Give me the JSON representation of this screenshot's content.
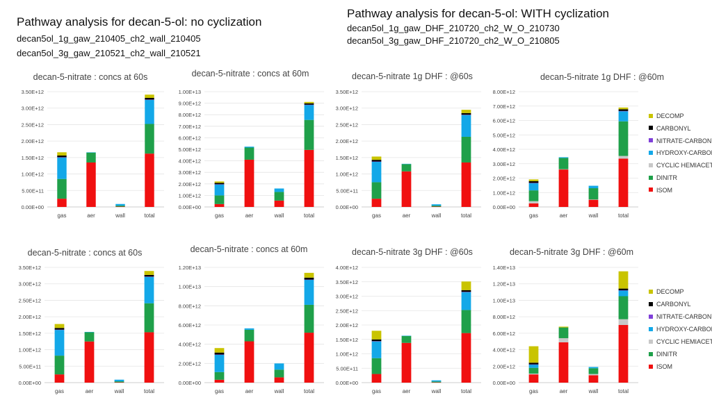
{
  "header_left": {
    "title": "Pathway analysis for decan-5-ol: no cyclization",
    "line1": "decan5ol_1g_gaw_210405_ch2_wall_210405",
    "line2": "decan5ol_3g_gaw_210521_ch2_wall_210521"
  },
  "header_right": {
    "title": "Pathway analysis for decan-5-ol: WITH cyclization",
    "line1": "decan5ol_1g_gaw_DHF_210720_ch2_W_O_210730",
    "line2": "decan5ol_3g_gaw_DHF_210720_ch2_W_O_210805"
  },
  "legend": {
    "items": [
      {
        "label": "DECOMP",
        "color": "#c9c400"
      },
      {
        "label": "CARBONYL",
        "color": "#000000"
      },
      {
        "label": "NITRATE-CARBONYL",
        "color": "#7f3fd9"
      },
      {
        "label": "HYDROXY-CARBONYL",
        "color": "#13a8e8"
      },
      {
        "label": "CYCLIC HEMIACETALS",
        "color": "#c8c8c8"
      },
      {
        "label": "DINITR",
        "color": "#1fa04a"
      },
      {
        "label": "ISOM",
        "color": "#f01010"
      }
    ]
  },
  "chart_data": [
    {
      "type": "bar",
      "stacked": true,
      "title": "decan-5-nitrate : concs at 60s",
      "categories": [
        "gas",
        "aer",
        "wall",
        "total"
      ],
      "ylim": [
        0,
        3500000000000.0
      ],
      "yticks": [
        "0.00E+00",
        "5.00E+11",
        "1.00E+12",
        "1.50E+12",
        "2.00E+12",
        "2.50E+12",
        "3.00E+12",
        "3.50E+12"
      ],
      "series": [
        {
          "name": "ISOM",
          "values": [
            250000000000.0,
            1350000000000.0,
            10000000000.0,
            1620000000000.0
          ]
        },
        {
          "name": "CYCLIC HEMIACETALS",
          "values": [
            0,
            0,
            0,
            0
          ]
        },
        {
          "name": "DINITR",
          "values": [
            600000000000.0,
            300000000000.0,
            30000000000.0,
            900000000000.0
          ]
        },
        {
          "name": "HYDROXY-CARBONYL",
          "values": [
            650000000000.0,
            10000000000.0,
            50000000000.0,
            730000000000.0
          ]
        },
        {
          "name": "NITRATE-CARBONYL",
          "values": [
            10000000000.0,
            0,
            0,
            10000000000.0
          ]
        },
        {
          "name": "CARBONYL",
          "values": [
            50000000000.0,
            0,
            0,
            50000000000.0
          ]
        },
        {
          "name": "DECOMP",
          "values": [
            100000000000.0,
            0,
            0,
            100000000000.0
          ]
        }
      ]
    },
    {
      "type": "bar",
      "stacked": true,
      "title": "decan-5-nitrate : concs at 60m",
      "categories": [
        "gas",
        "aer",
        "wall",
        "total"
      ],
      "ylim": [
        0,
        10000000000000.0
      ],
      "yticks": [
        "0.00E+00",
        "1.00E+12",
        "2.00E+12",
        "3.00E+12",
        "4.00E+12",
        "5.00E+12",
        "6.00E+12",
        "7.00E+12",
        "8.00E+12",
        "9.00E+12",
        "1.00E+13"
      ],
      "series": [
        {
          "name": "ISOM",
          "values": [
            250000000000.0,
            4100000000000.0,
            550000000000.0,
            4950000000000.0
          ]
        },
        {
          "name": "CYCLIC HEMIACETALS",
          "values": [
            0,
            0,
            0,
            0
          ]
        },
        {
          "name": "DINITR",
          "values": [
            750000000000.0,
            1050000000000.0,
            750000000000.0,
            2600000000000.0
          ]
        },
        {
          "name": "HYDROXY-CARBONYL",
          "values": [
            950000000000.0,
            80000000000.0,
            300000000000.0,
            1300000000000.0
          ]
        },
        {
          "name": "NITRATE-CARBONYL",
          "values": [
            20000000000.0,
            0,
            0,
            20000000000.0
          ]
        },
        {
          "name": "CARBONYL",
          "values": [
            120000000000.0,
            0,
            0,
            120000000000.0
          ]
        },
        {
          "name": "DECOMP",
          "values": [
            120000000000.0,
            0,
            0,
            120000000000.0
          ]
        }
      ]
    },
    {
      "type": "bar",
      "stacked": true,
      "title": "decan-5-nitrate 1g DHF : @60s",
      "categories": [
        "gas",
        "aer",
        "wall",
        "total"
      ],
      "ylim": [
        0,
        3500000000000.0
      ],
      "yticks": [
        "0.00E+00",
        "5.00E+11",
        "1.00E+12",
        "1.50E+12",
        "2.00E+12",
        "2.50E+12",
        "3.00E+12",
        "3.50E+12"
      ],
      "series": [
        {
          "name": "ISOM",
          "values": [
            250000000000.0,
            1080000000000.0,
            10000000000.0,
            1350000000000.0
          ]
        },
        {
          "name": "CYCLIC HEMIACETALS",
          "values": [
            0,
            0,
            0,
            0
          ]
        },
        {
          "name": "DINITR",
          "values": [
            500000000000.0,
            220000000000.0,
            30000000000.0,
            780000000000.0
          ]
        },
        {
          "name": "HYDROXY-CARBONYL",
          "values": [
            620000000000.0,
            10000000000.0,
            40000000000.0,
            660000000000.0
          ]
        },
        {
          "name": "NITRATE-CARBONYL",
          "values": [
            10000000000.0,
            0,
            0,
            10000000000.0
          ]
        },
        {
          "name": "CARBONYL",
          "values": [
            50000000000.0,
            0,
            0,
            50000000000.0
          ]
        },
        {
          "name": "DECOMP",
          "values": [
            100000000000.0,
            0,
            0,
            100000000000.0
          ]
        }
      ]
    },
    {
      "type": "bar",
      "stacked": true,
      "title": "decan-5-nitrate 1g DHF : @60m",
      "categories": [
        "gas",
        "aer",
        "wall",
        "total"
      ],
      "ylim": [
        0,
        8000000000000.0
      ],
      "yticks": [
        "0.00E+00",
        "1.00E+12",
        "2.00E+12",
        "3.00E+12",
        "4.00E+12",
        "5.00E+12",
        "6.00E+12",
        "7.00E+12",
        "8.00E+12"
      ],
      "series": [
        {
          "name": "ISOM",
          "values": [
            250000000000.0,
            2600000000000.0,
            500000000000.0,
            3350000000000.0
          ]
        },
        {
          "name": "CYCLIC HEMIACETALS",
          "values": [
            150000000000.0,
            20000000000.0,
            20000000000.0,
            190000000000.0
          ]
        },
        {
          "name": "DINITR",
          "values": [
            750000000000.0,
            780000000000.0,
            780000000000.0,
            2400000000000.0
          ]
        },
        {
          "name": "HYDROXY-CARBONYL",
          "values": [
            500000000000.0,
            50000000000.0,
            170000000000.0,
            700000000000.0
          ]
        },
        {
          "name": "NITRATE-CARBONYL",
          "values": [
            20000000000.0,
            0,
            0,
            20000000000.0
          ]
        },
        {
          "name": "CARBONYL",
          "values": [
            120000000000.0,
            0,
            0,
            120000000000.0
          ]
        },
        {
          "name": "DECOMP",
          "values": [
            120000000000.0,
            0,
            0,
            120000000000.0
          ]
        }
      ]
    },
    {
      "type": "bar",
      "stacked": true,
      "title": "decan-5-nitrate : concs at 60s",
      "categories": [
        "gas",
        "aer",
        "wall",
        "total"
      ],
      "ylim": [
        0,
        3500000000000.0
      ],
      "yticks": [
        "0.00E+00",
        "5.00E+11",
        "1.00E+12",
        "1.50E+12",
        "2.00E+12",
        "2.50E+12",
        "3.00E+12",
        "3.50E+12"
      ],
      "series": [
        {
          "name": "ISOM",
          "values": [
            250000000000.0,
            1250000000000.0,
            10000000000.0,
            1530000000000.0
          ]
        },
        {
          "name": "CYCLIC HEMIACETALS",
          "values": [
            0,
            0,
            0,
            0
          ]
        },
        {
          "name": "DINITR",
          "values": [
            570000000000.0,
            280000000000.0,
            30000000000.0,
            880000000000.0
          ]
        },
        {
          "name": "HYDROXY-CARBONYL",
          "values": [
            780000000000.0,
            10000000000.0,
            50000000000.0,
            800000000000.0
          ]
        },
        {
          "name": "NITRATE-CARBONYL",
          "values": [
            10000000000.0,
            0,
            0,
            10000000000.0
          ]
        },
        {
          "name": "CARBONYL",
          "values": [
            50000000000.0,
            0,
            0,
            50000000000.0
          ]
        },
        {
          "name": "DECOMP",
          "values": [
            120000000000.0,
            0,
            0,
            120000000000.0
          ]
        }
      ]
    },
    {
      "type": "bar",
      "stacked": true,
      "title": "decan-5-nitrate : concs at 60m",
      "categories": [
        "gas",
        "aer",
        "wall",
        "total"
      ],
      "ylim": [
        0,
        12000000000000.0
      ],
      "yticks": [
        "0.00E+00",
        "2.00E+12",
        "4.00E+12",
        "6.00E+12",
        "8.00E+12",
        "1.00E+13",
        "1.20E+13"
      ],
      "series": [
        {
          "name": "ISOM",
          "values": [
            300000000000.0,
            4300000000000.0,
            550000000000.0,
            5200000000000.0
          ]
        },
        {
          "name": "CYCLIC HEMIACETALS",
          "values": [
            0,
            0,
            0,
            0
          ]
        },
        {
          "name": "DINITR",
          "values": [
            800000000000.0,
            1200000000000.0,
            800000000000.0,
            2900000000000.0
          ]
        },
        {
          "name": "HYDROXY-CARBONYL",
          "values": [
            1800000000000.0,
            150000000000.0,
            650000000000.0,
            2600000000000.0
          ]
        },
        {
          "name": "NITRATE-CARBONYL",
          "values": [
            30000000000.0,
            0,
            0,
            30000000000.0
          ]
        },
        {
          "name": "CARBONYL",
          "values": [
            200000000000.0,
            0,
            0,
            200000000000.0
          ]
        },
        {
          "name": "DECOMP",
          "values": [
            470000000000.0,
            0,
            0,
            500000000000.0
          ]
        }
      ]
    },
    {
      "type": "bar",
      "stacked": true,
      "title": "decan-5-nitrate 3g DHF : @60s",
      "categories": [
        "gas",
        "aer",
        "wall",
        "total"
      ],
      "ylim": [
        0,
        4000000000000.0
      ],
      "yticks": [
        "0.00E+00",
        "5.00E+11",
        "1.00E+12",
        "1.50E+12",
        "2.00E+12",
        "2.50E+12",
        "3.00E+12",
        "3.50E+12",
        "4.00E+12"
      ],
      "series": [
        {
          "name": "ISOM",
          "values": [
            300000000000.0,
            1380000000000.0,
            10000000000.0,
            1720000000000.0
          ]
        },
        {
          "name": "CYCLIC HEMIACETALS",
          "values": [
            0,
            0,
            0,
            0
          ]
        },
        {
          "name": "DINITR",
          "values": [
            550000000000.0,
            240000000000.0,
            30000000000.0,
            800000000000.0
          ]
        },
        {
          "name": "HYDROXY-CARBONYL",
          "values": [
            580000000000.0,
            10000000000.0,
            40000000000.0,
            620000000000.0
          ]
        },
        {
          "name": "NITRATE-CARBONYL",
          "values": [
            10000000000.0,
            0,
            0,
            10000000000.0
          ]
        },
        {
          "name": "CARBONYL",
          "values": [
            60000000000.0,
            0,
            0,
            60000000000.0
          ]
        },
        {
          "name": "DECOMP",
          "values": [
            300000000000.0,
            0,
            0,
            300000000000.0
          ]
        }
      ]
    },
    {
      "type": "bar",
      "stacked": true,
      "title": "decan-5-nitrate 3g DHF : @60m",
      "categories": [
        "gas",
        "aer",
        "wall",
        "total"
      ],
      "ylim": [
        0,
        14000000000000.0
      ],
      "yticks": [
        "0.00E+00",
        "2.00E+12",
        "4.00E+12",
        "6.00E+12",
        "8.00E+12",
        "1.00E+13",
        "1.20E+13",
        "1.40E+13"
      ],
      "series": [
        {
          "name": "ISOM",
          "values": [
            1000000000000.0,
            4900000000000.0,
            900000000000.0,
            7000000000000.0
          ]
        },
        {
          "name": "CYCLIC HEMIACETALS",
          "values": [
            100000000000.0,
            500000000000.0,
            150000000000.0,
            700000000000.0
          ]
        },
        {
          "name": "DINITR",
          "values": [
            700000000000.0,
            1300000000000.0,
            700000000000.0,
            2800000000000.0
          ]
        },
        {
          "name": "HYDROXY-CARBONYL",
          "values": [
            400000000000.0,
            0,
            150000000000.0,
            700000000000.0
          ]
        },
        {
          "name": "NITRATE-CARBONYL",
          "values": [
            20000000000.0,
            0,
            0,
            20000000000.0
          ]
        },
        {
          "name": "CARBONYL",
          "values": [
            200000000000.0,
            0,
            0,
            200000000000.0
          ]
        },
        {
          "name": "DECOMP",
          "values": [
            2000000000000.0,
            100000000000.0,
            0,
            2100000000000.0
          ]
        }
      ]
    }
  ]
}
